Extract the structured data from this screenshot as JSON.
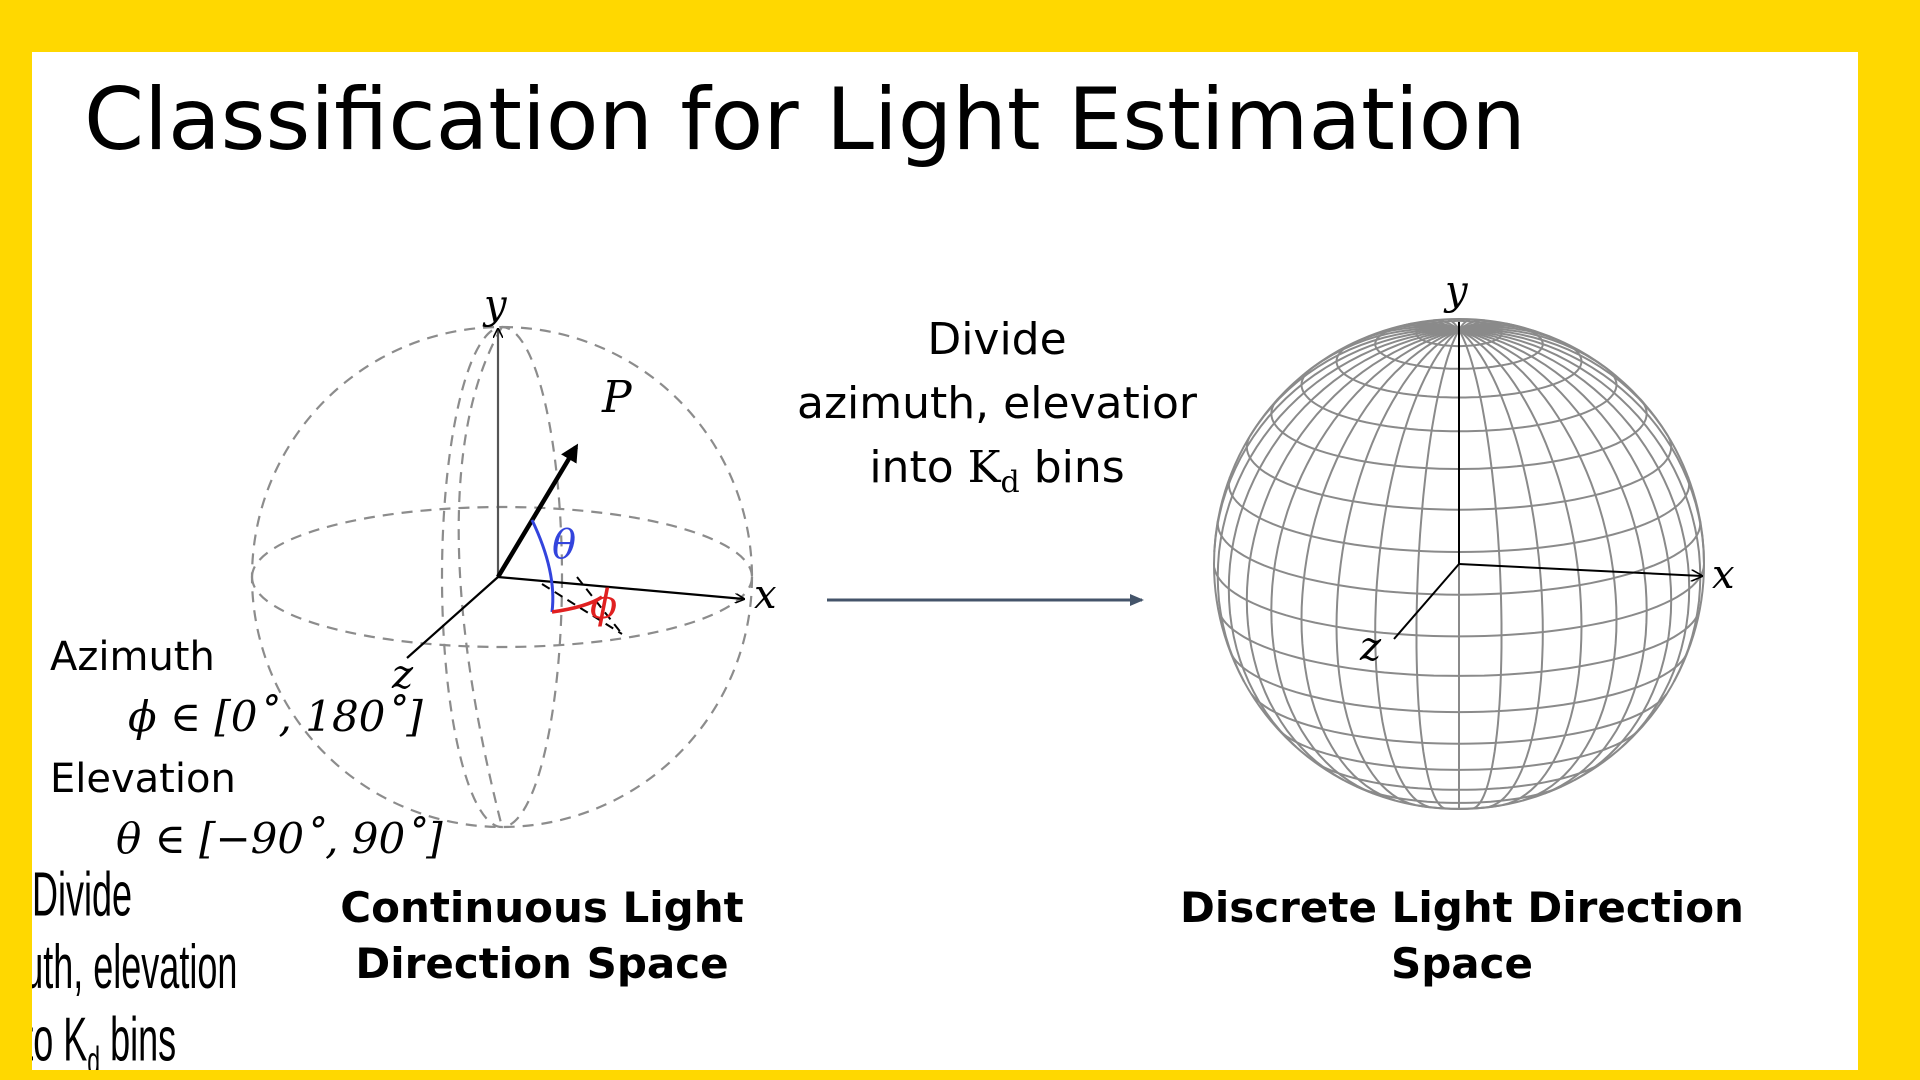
{
  "slide": {
    "title": "Classification for Light Estimation"
  },
  "center_text": {
    "line1": "Divide",
    "line2": "azimuth, elevatior",
    "line3_prefix": "into ",
    "line3_symbol": "K",
    "line3_sub": "d",
    "line3_suffix": " bins"
  },
  "left_diagram": {
    "axis_x": "x",
    "axis_y": "y",
    "axis_z": "z",
    "point_label": "P",
    "theta_symbol": "θ",
    "phi_symbol": "ϕ",
    "caption_line1": "Continuous Light",
    "caption_line2": "Direction Space"
  },
  "right_diagram": {
    "axis_x": "x",
    "axis_y": "y",
    "axis_z": "z",
    "caption_line1": "Discrete Light Direction",
    "caption_line2": "Space"
  },
  "ranges": {
    "azimuth_label": "Azimuth",
    "azimuth_range": "ϕ ∈ [0˚, 180˚]",
    "elevation_label": "Elevation",
    "elevation_range": "θ ∈ [−90˚, 90˚]"
  },
  "ghost_text": {
    "line1": "Divide",
    "line2": "nuth, elevation",
    "line3": "nto K",
    "line3_sub": "d",
    "line3_suffix": " bins"
  },
  "colors": {
    "background": "#FFD800",
    "slide": "#FFFFFF",
    "theta_arc": "#3344dd",
    "phi_arc": "#e02020",
    "arrow": "#44546A",
    "sphere_grid": "#8a8a8a"
  }
}
